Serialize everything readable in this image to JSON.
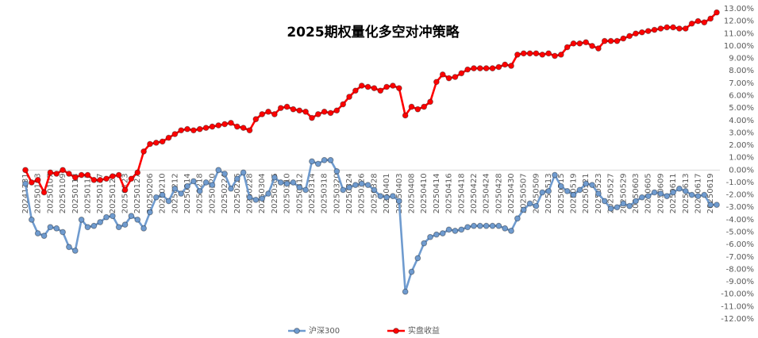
{
  "chart_data": {
    "type": "line",
    "title": "2025期权量化多空对冲策略",
    "categories": [
      "20241231",
      null,
      "20250103",
      null,
      "20250107",
      null,
      "20250109",
      null,
      "20250113",
      null,
      "20250115",
      null,
      "20250117",
      null,
      "20250121",
      null,
      "20250123",
      null,
      "20250127",
      null,
      "20250206",
      null,
      "20250210",
      null,
      "20250212",
      null,
      "20250214",
      null,
      "20250218",
      null,
      "20250220",
      null,
      "20250224",
      null,
      "20250226",
      null,
      "20250228",
      null,
      "20250304",
      null,
      "20250306",
      null,
      "20250310",
      null,
      "20250312",
      null,
      "20250314",
      null,
      "20250318",
      null,
      "20250320",
      null,
      "20250324",
      null,
      "20250326",
      null,
      "20250328",
      null,
      "20250401",
      null,
      "20250403",
      null,
      "20250408",
      null,
      "20250410",
      null,
      "20250414",
      null,
      "20250416",
      null,
      "20250418",
      null,
      "20250422",
      null,
      "20250424",
      null,
      "20250428",
      null,
      "20250430",
      null,
      "20250507",
      null,
      "20250509",
      null,
      "20250513",
      null,
      "20250515",
      null,
      "20250519",
      null,
      "20250521",
      null,
      "20250523",
      null,
      "20250527",
      null,
      "20250529",
      null,
      "20250603",
      null,
      "20250605",
      null,
      "20250609",
      null,
      "20250611",
      null,
      "20250613",
      null,
      "20250617",
      null,
      "20250619",
      null
    ],
    "series": [
      {
        "name": "沪深300",
        "color": "#6f9bcf",
        "values": [
          -1.1,
          -4.0,
          -5.1,
          -5.3,
          -4.6,
          -4.7,
          -5.0,
          -6.2,
          -6.5,
          -4.0,
          -4.6,
          -4.5,
          -4.2,
          -3.8,
          -3.7,
          -4.6,
          -4.4,
          -3.7,
          -4.0,
          -4.7,
          -3.4,
          -2.2,
          -2.0,
          -2.5,
          -1.5,
          -1.9,
          -1.3,
          -0.9,
          -1.7,
          -1.0,
          -1.2,
          0.0,
          -0.3,
          -1.5,
          -0.7,
          -0.2,
          -2.2,
          -2.4,
          -2.3,
          -1.9,
          -0.6,
          -1.0,
          -1.1,
          -1.0,
          -1.4,
          -1.6,
          0.7,
          0.5,
          0.8,
          0.8,
          -0.1,
          -1.6,
          -1.4,
          -1.2,
          -1.1,
          -1.2,
          -1.6,
          -2.1,
          -2.2,
          -2.1,
          -2.5,
          -9.8,
          -8.2,
          -7.1,
          -5.9,
          -5.4,
          -5.2,
          -5.1,
          -4.8,
          -4.9,
          -4.8,
          -4.6,
          -4.5,
          -4.5,
          -4.5,
          -4.5,
          -4.5,
          -4.7,
          -4.9,
          -3.9,
          -3.2,
          -2.7,
          -2.9,
          -1.8,
          -1.7,
          -0.4,
          -1.3,
          -1.7,
          -2.0,
          -1.6,
          -1.1,
          -1.2,
          -1.9,
          -2.5,
          -3.1,
          -3.0,
          -2.7,
          -2.9,
          -2.5,
          -2.2,
          -2.1,
          -1.8,
          -1.9,
          -2.1,
          -1.8,
          -1.5,
          -1.7,
          -2.0,
          -2.1,
          -2.0,
          -2.8,
          -2.8
        ]
      },
      {
        "name": "实盘收益",
        "color": "#ff0000",
        "values": [
          0.0,
          -1.0,
          -0.8,
          -1.8,
          -0.2,
          -0.3,
          0.0,
          -0.3,
          -0.6,
          -0.4,
          -0.4,
          -0.8,
          -0.8,
          -0.7,
          -0.5,
          -0.4,
          -1.6,
          -0.7,
          -0.2,
          1.5,
          2.1,
          2.2,
          2.3,
          2.6,
          2.9,
          3.2,
          3.3,
          3.2,
          3.3,
          3.4,
          3.5,
          3.6,
          3.7,
          3.8,
          3.5,
          3.4,
          3.2,
          4.1,
          4.5,
          4.7,
          4.5,
          5.0,
          5.1,
          4.9,
          4.8,
          4.7,
          4.2,
          4.5,
          4.7,
          4.6,
          4.8,
          5.3,
          5.9,
          6.4,
          6.8,
          6.7,
          6.6,
          6.4,
          6.7,
          6.8,
          6.6,
          4.4,
          5.1,
          4.9,
          5.1,
          5.5,
          7.1,
          7.7,
          7.4,
          7.5,
          7.8,
          8.1,
          8.2,
          8.2,
          8.2,
          8.2,
          8.3,
          8.5,
          8.4,
          9.3,
          9.4,
          9.4,
          9.4,
          9.3,
          9.4,
          9.2,
          9.3,
          9.9,
          10.2,
          10.2,
          10.3,
          10.0,
          9.8,
          10.4,
          10.4,
          10.4,
          10.6,
          10.8,
          11.0,
          11.1,
          11.2,
          11.3,
          11.4,
          11.5,
          11.5,
          11.4,
          11.4,
          11.8,
          12.0,
          11.9,
          12.2,
          12.7
        ]
      }
    ],
    "ylim": [
      -12,
      13
    ],
    "yticks": [
      {
        "value": 13,
        "label": "13.00%"
      },
      {
        "value": 12,
        "label": "12.00%"
      },
      {
        "value": 11,
        "label": "11.00%"
      },
      {
        "value": 10,
        "label": "10.00%"
      },
      {
        "value": 9,
        "label": "9.00%"
      },
      {
        "value": 8,
        "label": "8.00%"
      },
      {
        "value": 7,
        "label": "7.00%"
      },
      {
        "value": 6,
        "label": "6.00%"
      },
      {
        "value": 5,
        "label": "5.00%"
      },
      {
        "value": 4,
        "label": "4.00%"
      },
      {
        "value": 3,
        "label": "3.00%"
      },
      {
        "value": 2,
        "label": "2.00%"
      },
      {
        "value": 1,
        "label": "1.00%"
      },
      {
        "value": 0,
        "label": "0.00%"
      },
      {
        "value": -1,
        "label": "-1.00%"
      },
      {
        "value": -2,
        "label": "-2.00%"
      },
      {
        "value": -3,
        "label": "-3.00%"
      },
      {
        "value": -4,
        "label": "-4.00%"
      },
      {
        "value": -5,
        "label": "-5.00%"
      },
      {
        "value": -6,
        "label": "-6.00%"
      },
      {
        "value": -7,
        "label": "-7.00%"
      },
      {
        "value": -8,
        "label": "-8.00%"
      },
      {
        "value": -9,
        "label": "-9.00%"
      },
      {
        "value": -10,
        "label": "-10.00%"
      },
      {
        "value": -11,
        "label": "-11.00%"
      },
      {
        "value": -12,
        "label": "-12.00%"
      }
    ],
    "y_axis_side": "right",
    "grid": false,
    "legend": "bottom"
  }
}
